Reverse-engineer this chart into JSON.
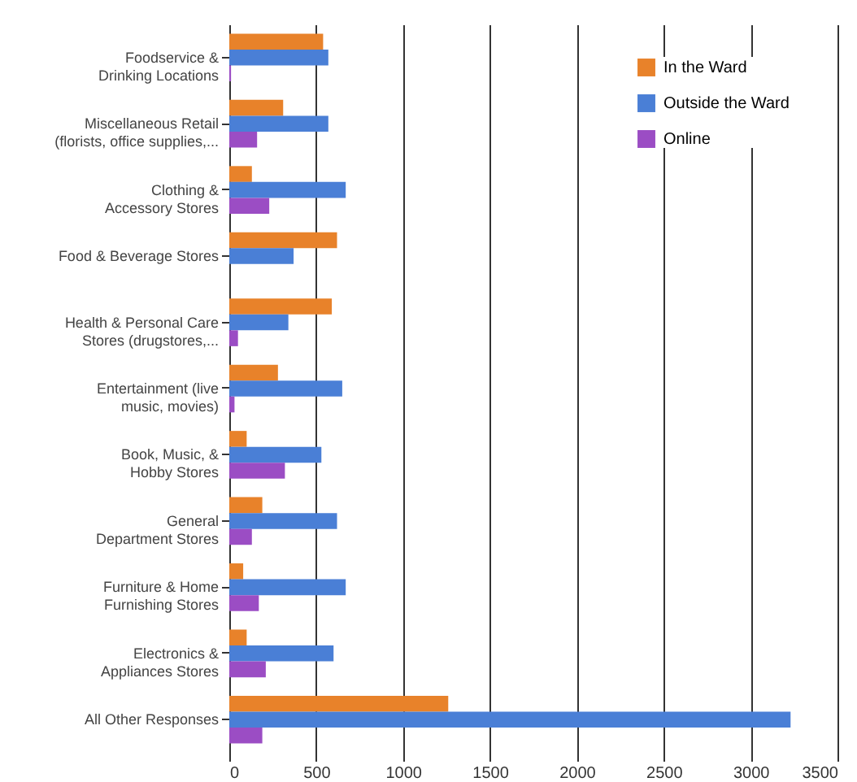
{
  "chart_data": {
    "type": "bar",
    "orientation": "horizontal",
    "categories": [
      "Foodservice &\nDrinking Locations",
      "Miscellaneous Retail\n(florists, office supplies,...",
      "Clothing &\nAccessory Stores",
      "Food & Beverage Stores",
      "Health & Personal Care\nStores (drugstores,...",
      "Entertainment (live\nmusic, movies)",
      "Book, Music, &\nHobby Stores",
      "General\nDepartment Stores",
      "Furniture & Home\nFurnishing Stores",
      "Electronics &\nAppliances Stores",
      "All Other Responses"
    ],
    "series": [
      {
        "name": "In the Ward",
        "color": "#e8822a",
        "values": [
          540,
          310,
          130,
          620,
          590,
          280,
          100,
          190,
          80,
          100,
          1260
        ]
      },
      {
        "name": "Outside the Ward",
        "color": "#4a7fd6",
        "values": [
          570,
          570,
          670,
          370,
          340,
          650,
          530,
          620,
          670,
          600,
          3230
        ]
      },
      {
        "name": "Online",
        "color": "#9b4dc4",
        "values": [
          10,
          160,
          230,
          0,
          50,
          30,
          320,
          130,
          170,
          210,
          190
        ]
      }
    ],
    "xlim": [
      0,
      3500
    ],
    "xticks": [
      0,
      500,
      1000,
      1500,
      2000,
      2500,
      3000,
      3500
    ],
    "grid": "x",
    "legend": "top right"
  }
}
